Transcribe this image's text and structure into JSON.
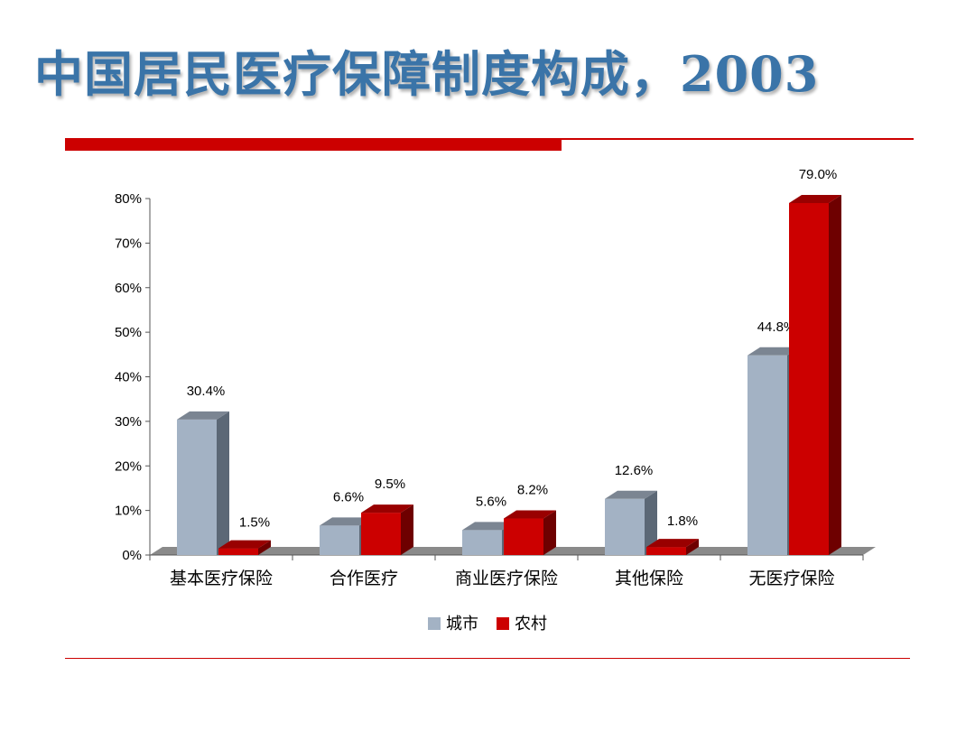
{
  "title": "中国居民医疗保障制度构成，2003",
  "colors": {
    "title": "#3a74a8",
    "accent_rule": "#cc0000",
    "series_urban": "#a3b2c4",
    "series_rural": "#cc0000",
    "floor": "#8a8a8a"
  },
  "chart_data": {
    "type": "bar",
    "title": "",
    "xlabel": "",
    "ylabel": "",
    "categories": [
      "基本医疗保险",
      "合作医疗",
      "商业医疗保险",
      "其他保险",
      "无医疗保险"
    ],
    "series": [
      {
        "name": "城市",
        "values": [
          30.4,
          6.6,
          5.6,
          12.6,
          44.8
        ],
        "labels": [
          "30.4%",
          "6.6%",
          "5.6%",
          "12.6%",
          "44.8%"
        ]
      },
      {
        "name": "农村",
        "values": [
          1.5,
          9.5,
          8.2,
          1.8,
          79.0
        ],
        "labels": [
          "1.5%",
          "9.5%",
          "8.2%",
          "1.8%",
          "79.0%"
        ]
      }
    ],
    "y_ticks": [
      "0%",
      "10%",
      "20%",
      "30%",
      "40%",
      "50%",
      "60%",
      "70%",
      "80%"
    ],
    "ylim": [
      0,
      80
    ],
    "grid": false,
    "legend_position": "bottom",
    "style": "3d clustered column"
  }
}
